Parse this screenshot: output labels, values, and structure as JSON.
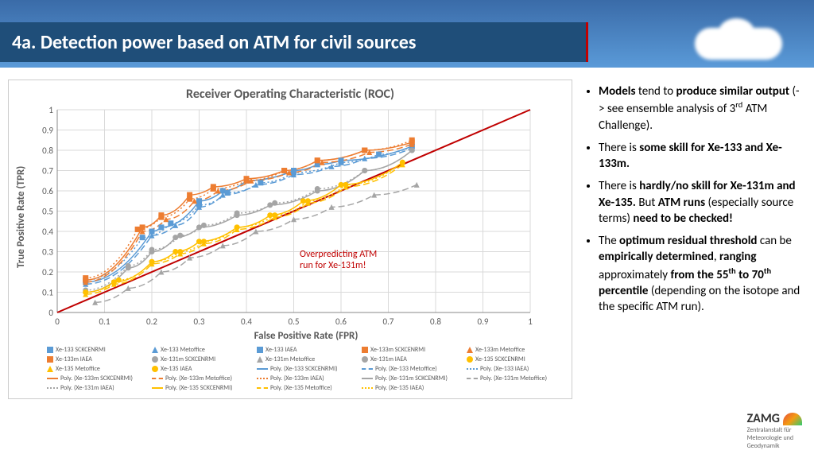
{
  "slide_title": "4a. Detection power based on ATM for civil sources",
  "chart": {
    "type": "line-scatter",
    "title": "Receiver Operating Characteristic (ROC)",
    "xlabel": "False Positive Rate (FPR)",
    "ylabel": "True Positive Rate (TPR)",
    "xlim": [
      0,
      1
    ],
    "ylim": [
      0,
      1
    ],
    "xticks": [
      0,
      0.1,
      0.2,
      0.3,
      0.4,
      0.5,
      0.6,
      0.7,
      0.8,
      0.9,
      1
    ],
    "yticks": [
      0,
      0.1,
      0.2,
      0.3,
      0.4,
      0.5,
      0.6,
      0.7,
      0.8,
      0.9,
      1
    ],
    "grid_color": "#d9d9d9",
    "background_color": "#ffffff",
    "diagonal_color": "#c00000",
    "annotation": {
      "text1": "Overpredicting ATM",
      "text2": "run for Xe-131m!",
      "color": "#c00000"
    },
    "series": [
      {
        "name": "Xe-133 SCKCENRMI",
        "marker": "square",
        "color": "#5b9bd5",
        "points": [
          [
            0.06,
            0.15
          ],
          [
            0.2,
            0.4
          ],
          [
            0.22,
            0.42
          ],
          [
            0.3,
            0.55
          ],
          [
            0.35,
            0.6
          ],
          [
            0.4,
            0.65
          ],
          [
            0.5,
            0.7
          ],
          [
            0.55,
            0.73
          ],
          [
            0.6,
            0.75
          ],
          [
            0.75,
            0.82
          ]
        ]
      },
      {
        "name": "Xe-133 Metoffice",
        "marker": "triangle",
        "color": "#5b9bd5",
        "points": [
          [
            0.06,
            0.14
          ],
          [
            0.2,
            0.38
          ],
          [
            0.25,
            0.43
          ],
          [
            0.3,
            0.52
          ],
          [
            0.35,
            0.58
          ],
          [
            0.42,
            0.63
          ],
          [
            0.5,
            0.68
          ],
          [
            0.58,
            0.72
          ],
          [
            0.65,
            0.76
          ],
          [
            0.75,
            0.81
          ]
        ]
      },
      {
        "name": "Xe-133 IAEA",
        "marker": "square",
        "color": "#5b9bd5",
        "points": [
          [
            0.06,
            0.16
          ],
          [
            0.18,
            0.37
          ],
          [
            0.24,
            0.44
          ],
          [
            0.3,
            0.53
          ],
          [
            0.36,
            0.59
          ],
          [
            0.43,
            0.64
          ],
          [
            0.5,
            0.69
          ],
          [
            0.6,
            0.74
          ],
          [
            0.68,
            0.78
          ],
          [
            0.75,
            0.82
          ]
        ]
      },
      {
        "name": "Xe-133m SCKCENRMI",
        "marker": "square",
        "color": "#ed7d31",
        "points": [
          [
            0.06,
            0.16
          ],
          [
            0.18,
            0.42
          ],
          [
            0.22,
            0.48
          ],
          [
            0.28,
            0.58
          ],
          [
            0.33,
            0.62
          ],
          [
            0.4,
            0.66
          ],
          [
            0.48,
            0.7
          ],
          [
            0.55,
            0.75
          ],
          [
            0.65,
            0.8
          ],
          [
            0.75,
            0.84
          ]
        ]
      },
      {
        "name": "Xe-133m Metoffice",
        "marker": "triangle",
        "color": "#ed7d31",
        "points": [
          [
            0.06,
            0.15
          ],
          [
            0.18,
            0.4
          ],
          [
            0.23,
            0.46
          ],
          [
            0.29,
            0.55
          ],
          [
            0.34,
            0.6
          ],
          [
            0.41,
            0.65
          ],
          [
            0.49,
            0.69
          ],
          [
            0.56,
            0.74
          ],
          [
            0.66,
            0.79
          ],
          [
            0.75,
            0.83
          ]
        ]
      },
      {
        "name": "Xe-133m IAEA",
        "marker": "square",
        "color": "#ed7d31",
        "points": [
          [
            0.06,
            0.17
          ],
          [
            0.17,
            0.41
          ],
          [
            0.22,
            0.47
          ],
          [
            0.28,
            0.56
          ],
          [
            0.33,
            0.61
          ],
          [
            0.4,
            0.65
          ],
          [
            0.48,
            0.7
          ],
          [
            0.55,
            0.75
          ],
          [
            0.65,
            0.8
          ],
          [
            0.75,
            0.85
          ]
        ]
      },
      {
        "name": "Xe-131m SCKCENRMI",
        "marker": "circle",
        "color": "#a5a5a5",
        "points": [
          [
            0.06,
            0.1
          ],
          [
            0.15,
            0.22
          ],
          [
            0.2,
            0.3
          ],
          [
            0.25,
            0.37
          ],
          [
            0.3,
            0.42
          ],
          [
            0.38,
            0.48
          ],
          [
            0.45,
            0.53
          ],
          [
            0.55,
            0.6
          ],
          [
            0.65,
            0.7
          ],
          [
            0.75,
            0.8
          ]
        ]
      },
      {
        "name": "Xe-131m Metoffice",
        "marker": "triangle",
        "color": "#a5a5a5",
        "points": [
          [
            0.08,
            0.05
          ],
          [
            0.15,
            0.12
          ],
          [
            0.22,
            0.2
          ],
          [
            0.28,
            0.27
          ],
          [
            0.35,
            0.33
          ],
          [
            0.42,
            0.4
          ],
          [
            0.5,
            0.46
          ],
          [
            0.58,
            0.52
          ],
          [
            0.67,
            0.58
          ],
          [
            0.76,
            0.63
          ]
        ]
      },
      {
        "name": "Xe-131m IAEA",
        "marker": "circle",
        "color": "#a5a5a5",
        "points": [
          [
            0.06,
            0.11
          ],
          [
            0.15,
            0.23
          ],
          [
            0.2,
            0.31
          ],
          [
            0.26,
            0.38
          ],
          [
            0.31,
            0.43
          ],
          [
            0.38,
            0.49
          ],
          [
            0.46,
            0.54
          ],
          [
            0.55,
            0.61
          ],
          [
            0.65,
            0.7
          ],
          [
            0.75,
            0.8
          ]
        ]
      },
      {
        "name": "Xe-135 SCKCENRMI",
        "marker": "circle",
        "color": "#ffc000",
        "points": [
          [
            0.06,
            0.1
          ],
          [
            0.12,
            0.15
          ],
          [
            0.2,
            0.25
          ],
          [
            0.25,
            0.3
          ],
          [
            0.3,
            0.35
          ],
          [
            0.38,
            0.42
          ],
          [
            0.45,
            0.48
          ],
          [
            0.52,
            0.55
          ],
          [
            0.6,
            0.63
          ],
          [
            0.73,
            0.74
          ]
        ]
      },
      {
        "name": "Xe-135 Metoffice",
        "marker": "triangle",
        "color": "#ffc000",
        "points": [
          [
            0.06,
            0.09
          ],
          [
            0.12,
            0.14
          ],
          [
            0.2,
            0.24
          ],
          [
            0.26,
            0.29
          ],
          [
            0.31,
            0.34
          ],
          [
            0.38,
            0.41
          ],
          [
            0.46,
            0.47
          ],
          [
            0.53,
            0.54
          ],
          [
            0.61,
            0.62
          ],
          [
            0.73,
            0.73
          ]
        ]
      },
      {
        "name": "Xe-135 IAEA",
        "marker": "circle",
        "color": "#ffc000",
        "points": [
          [
            0.06,
            0.1
          ],
          [
            0.13,
            0.16
          ],
          [
            0.2,
            0.25
          ],
          [
            0.26,
            0.3
          ],
          [
            0.31,
            0.35
          ],
          [
            0.38,
            0.42
          ],
          [
            0.46,
            0.48
          ],
          [
            0.53,
            0.55
          ],
          [
            0.61,
            0.63
          ],
          [
            0.73,
            0.74
          ]
        ]
      }
    ],
    "poly_series": [
      {
        "name": "Poly. (Xe-133 SCKCENRMI)",
        "color": "#5b9bd5",
        "dash": "none"
      },
      {
        "name": "Poly. (Xe-133 Metoffice)",
        "color": "#5b9bd5",
        "dash": "8,4"
      },
      {
        "name": "Poly. (Xe-133 IAEA)",
        "color": "#5b9bd5",
        "dash": "2,3"
      },
      {
        "name": "Poly. (Xe-133m SCKCENRMI)",
        "color": "#ed7d31",
        "dash": "none"
      },
      {
        "name": "Poly. (Xe-133m Metoffice)",
        "color": "#ed7d31",
        "dash": "8,4"
      },
      {
        "name": "Poly. (Xe-133m IAEA)",
        "color": "#ed7d31",
        "dash": "2,3"
      },
      {
        "name": "Poly. (Xe-131m SCKCENRMI)",
        "color": "#a5a5a5",
        "dash": "none"
      },
      {
        "name": "Poly. (Xe-131m Metoffice)",
        "color": "#a5a5a5",
        "dash": "8,4"
      },
      {
        "name": "Poly. (Xe-131m IAEA)",
        "color": "#a5a5a5",
        "dash": "2,3"
      },
      {
        "name": "Poly. (Xe-135 SCKCENRMI)",
        "color": "#ffc000",
        "dash": "none"
      },
      {
        "name": "Poly. (Xe-135 Metoffice)",
        "color": "#ffc000",
        "dash": "8,4"
      },
      {
        "name": "Poly. (Xe-135 IAEA)",
        "color": "#ffc000",
        "dash": "2,3"
      }
    ]
  },
  "bullets": [
    "<b>Models</b> tend to <b>produce similar output</b> (-> see ensemble analysis of 3<sup>rd</sup> ATM Challenge).",
    "There is <b>some skill for Xe-133 and Xe-133m.</b>",
    "There is <b>hardly/no skill for Xe-131m and Xe-135.</b> But <b>ATM runs</b> (especially source terms) <b>need to be checked!</b>",
    "The <b>optimum residual threshold</b> can be <b>empirically determined</b>, <b>ranging</b> approximately <b>from the 55<sup>th</sup> to 70<sup>th</sup> percentile</b> (depending on the isotope and the specific ATM run)."
  ],
  "logo": {
    "main": "ZAMG",
    "sub1": "Zentralanstalt für",
    "sub2": "Meteorologie und",
    "sub3": "Geodynamik"
  }
}
